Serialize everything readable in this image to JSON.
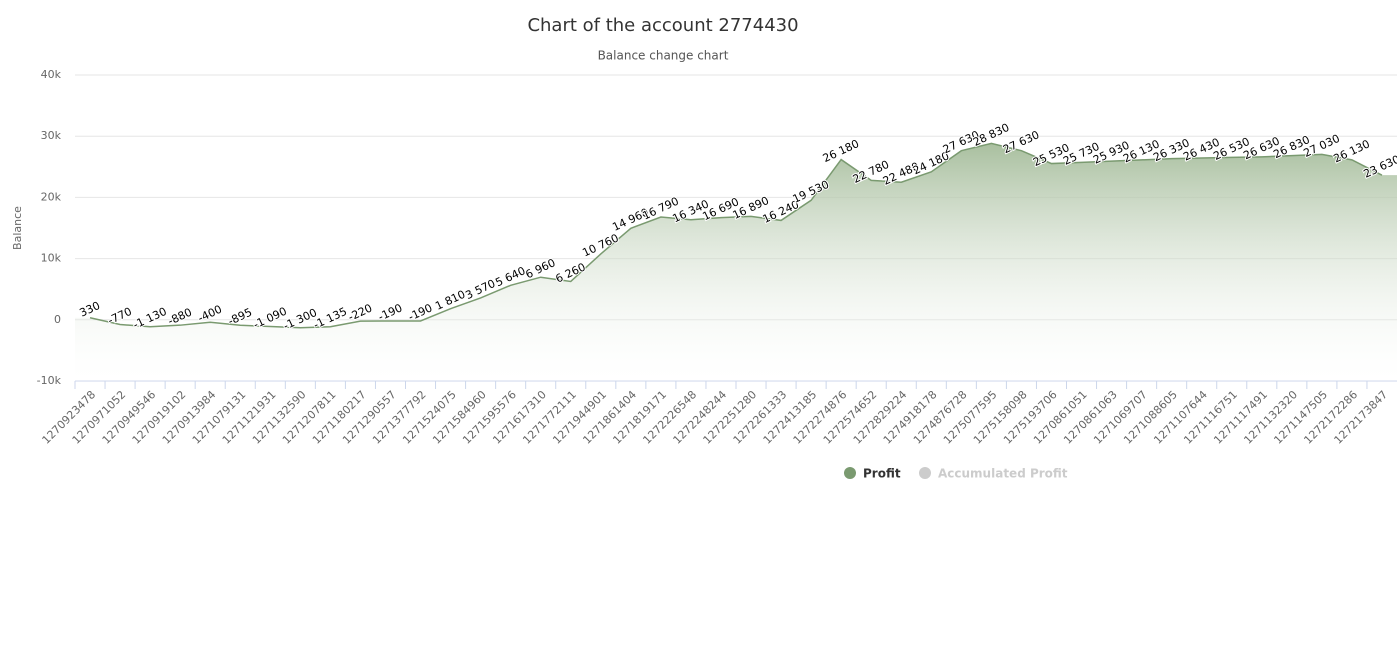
{
  "chart_data": {
    "type": "area",
    "title": "Chart of the account 2774430",
    "subtitle": "Balance change chart",
    "y_label": "Balance",
    "categories": [
      "1270923478",
      "1270971052",
      "1270949546",
      "1270919102",
      "1270913984",
      "1271079131",
      "1271121931",
      "1271132590",
      "1271207811",
      "1271180217",
      "1271290557",
      "1271377792",
      "1271524075",
      "1271584960",
      "1271595576",
      "1271617310",
      "1271772111",
      "1271944901",
      "1271861404",
      "1271819171",
      "1272226548",
      "1272248244",
      "1272251280",
      "1272261333",
      "1272413185",
      "1272274876",
      "1272574652",
      "1272829224",
      "1274918178",
      "1274876728",
      "1275077595",
      "1275158098",
      "1275193706",
      "1270861051",
      "1270861063",
      "1271069707",
      "1271088605",
      "1271107644",
      "1271116751",
      "1271117491",
      "1271132320",
      "1271147505",
      "1272172286",
      "1272173847"
    ],
    "series": [
      {
        "name": "Profit",
        "color": "#7a9a70",
        "values": [
          330,
          -770,
          -1130,
          -880,
          -400,
          -895,
          -1090,
          -1300,
          -1135,
          -220,
          -190,
          -190,
          1810,
          3570,
          5640,
          6960,
          6260,
          10760,
          14960,
          16790,
          16340,
          16690,
          16890,
          16240,
          19530,
          26180,
          22780,
          22480,
          24180,
          27630,
          28830,
          27630,
          25530,
          25730,
          25930,
          26130,
          26330,
          26430,
          26530,
          26630,
          26830,
          27030,
          26130,
          23630
        ],
        "value_labels": [
          "330",
          "-770",
          "-1 130",
          "-880",
          "-400",
          "-895",
          "-1 090",
          "-1 300",
          "-1 135",
          "-220",
          "-190",
          "-190",
          "1 810",
          "3 570",
          "5 640",
          "6 960",
          "6 260",
          "10 760",
          "14 960",
          "16 790",
          "16 340",
          "16 690",
          "16 890",
          "16 240",
          "19 530",
          "26 180",
          "22 780",
          "22 480",
          "24 180",
          "27 630",
          "28 830",
          "27 630",
          "25 530",
          "25 730",
          "25 930",
          "26 130",
          "26 330",
          "26 430",
          "26 530",
          "26 630",
          "26 830",
          "27 030",
          "26 130",
          "23 630"
        ]
      },
      {
        "name": "Accumulated Profit",
        "color": "#cccccc",
        "values": null
      }
    ],
    "ylim": [
      -10000,
      40000
    ],
    "yticks": [
      {
        "value": -10000,
        "label": "-10k"
      },
      0,
      {
        "value": 10000,
        "label": "10k"
      },
      {
        "value": 20000,
        "label": "20k"
      },
      {
        "value": 30000,
        "label": "30k"
      },
      {
        "value": 40000,
        "label": "40k"
      }
    ],
    "grid": true
  }
}
